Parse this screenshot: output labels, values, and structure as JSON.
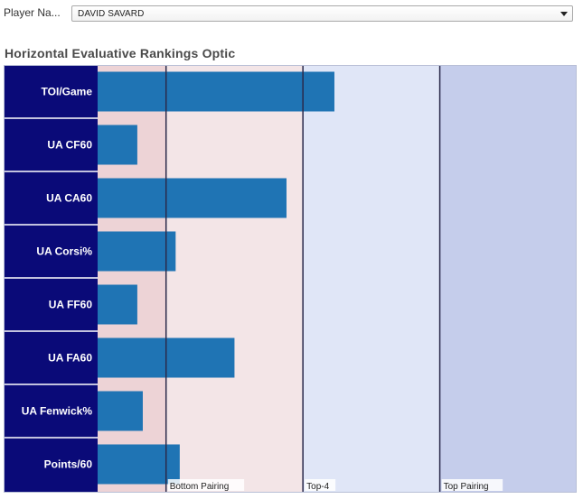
{
  "filter": {
    "label": "Player Na...",
    "selected": "DAVID SAVARD"
  },
  "chart_title": "Horizontal Evaluative Rankings Optic",
  "colors": {
    "label_panel": "#0a0a78",
    "bar": "#1f74b4",
    "band_low": "#edd3d6",
    "band_bottom_pairing": "#f3e5e7",
    "band_top4": "#e0e6f7",
    "band_top_pairing": "#c5cdeb",
    "divider": "#2a2a4a"
  },
  "chart_data": {
    "type": "bar",
    "orientation": "horizontal",
    "title": "Horizontal Evaluative Rankings Optic",
    "categories": [
      "TOI/Game",
      "UA CF60",
      "UA CA60",
      "UA Corsi%",
      "UA FF60",
      "UA FA60",
      "UA Fenwick%",
      "Points/60"
    ],
    "values": [
      1.73,
      0.29,
      1.38,
      0.57,
      0.29,
      1.0,
      0.33,
      0.6
    ],
    "xlim": [
      0,
      3.5
    ],
    "bands": [
      {
        "label": "",
        "from": 0,
        "to": 0.5
      },
      {
        "label": "Bottom Pairing",
        "from": 0.5,
        "to": 1.5
      },
      {
        "label": "Top-4",
        "from": 1.5,
        "to": 2.5
      },
      {
        "label": "Top Pairing",
        "from": 2.5,
        "to": 3.5
      }
    ],
    "thresholds": [
      0.5,
      1.5,
      2.5
    ],
    "grid": false,
    "legend": "none"
  }
}
